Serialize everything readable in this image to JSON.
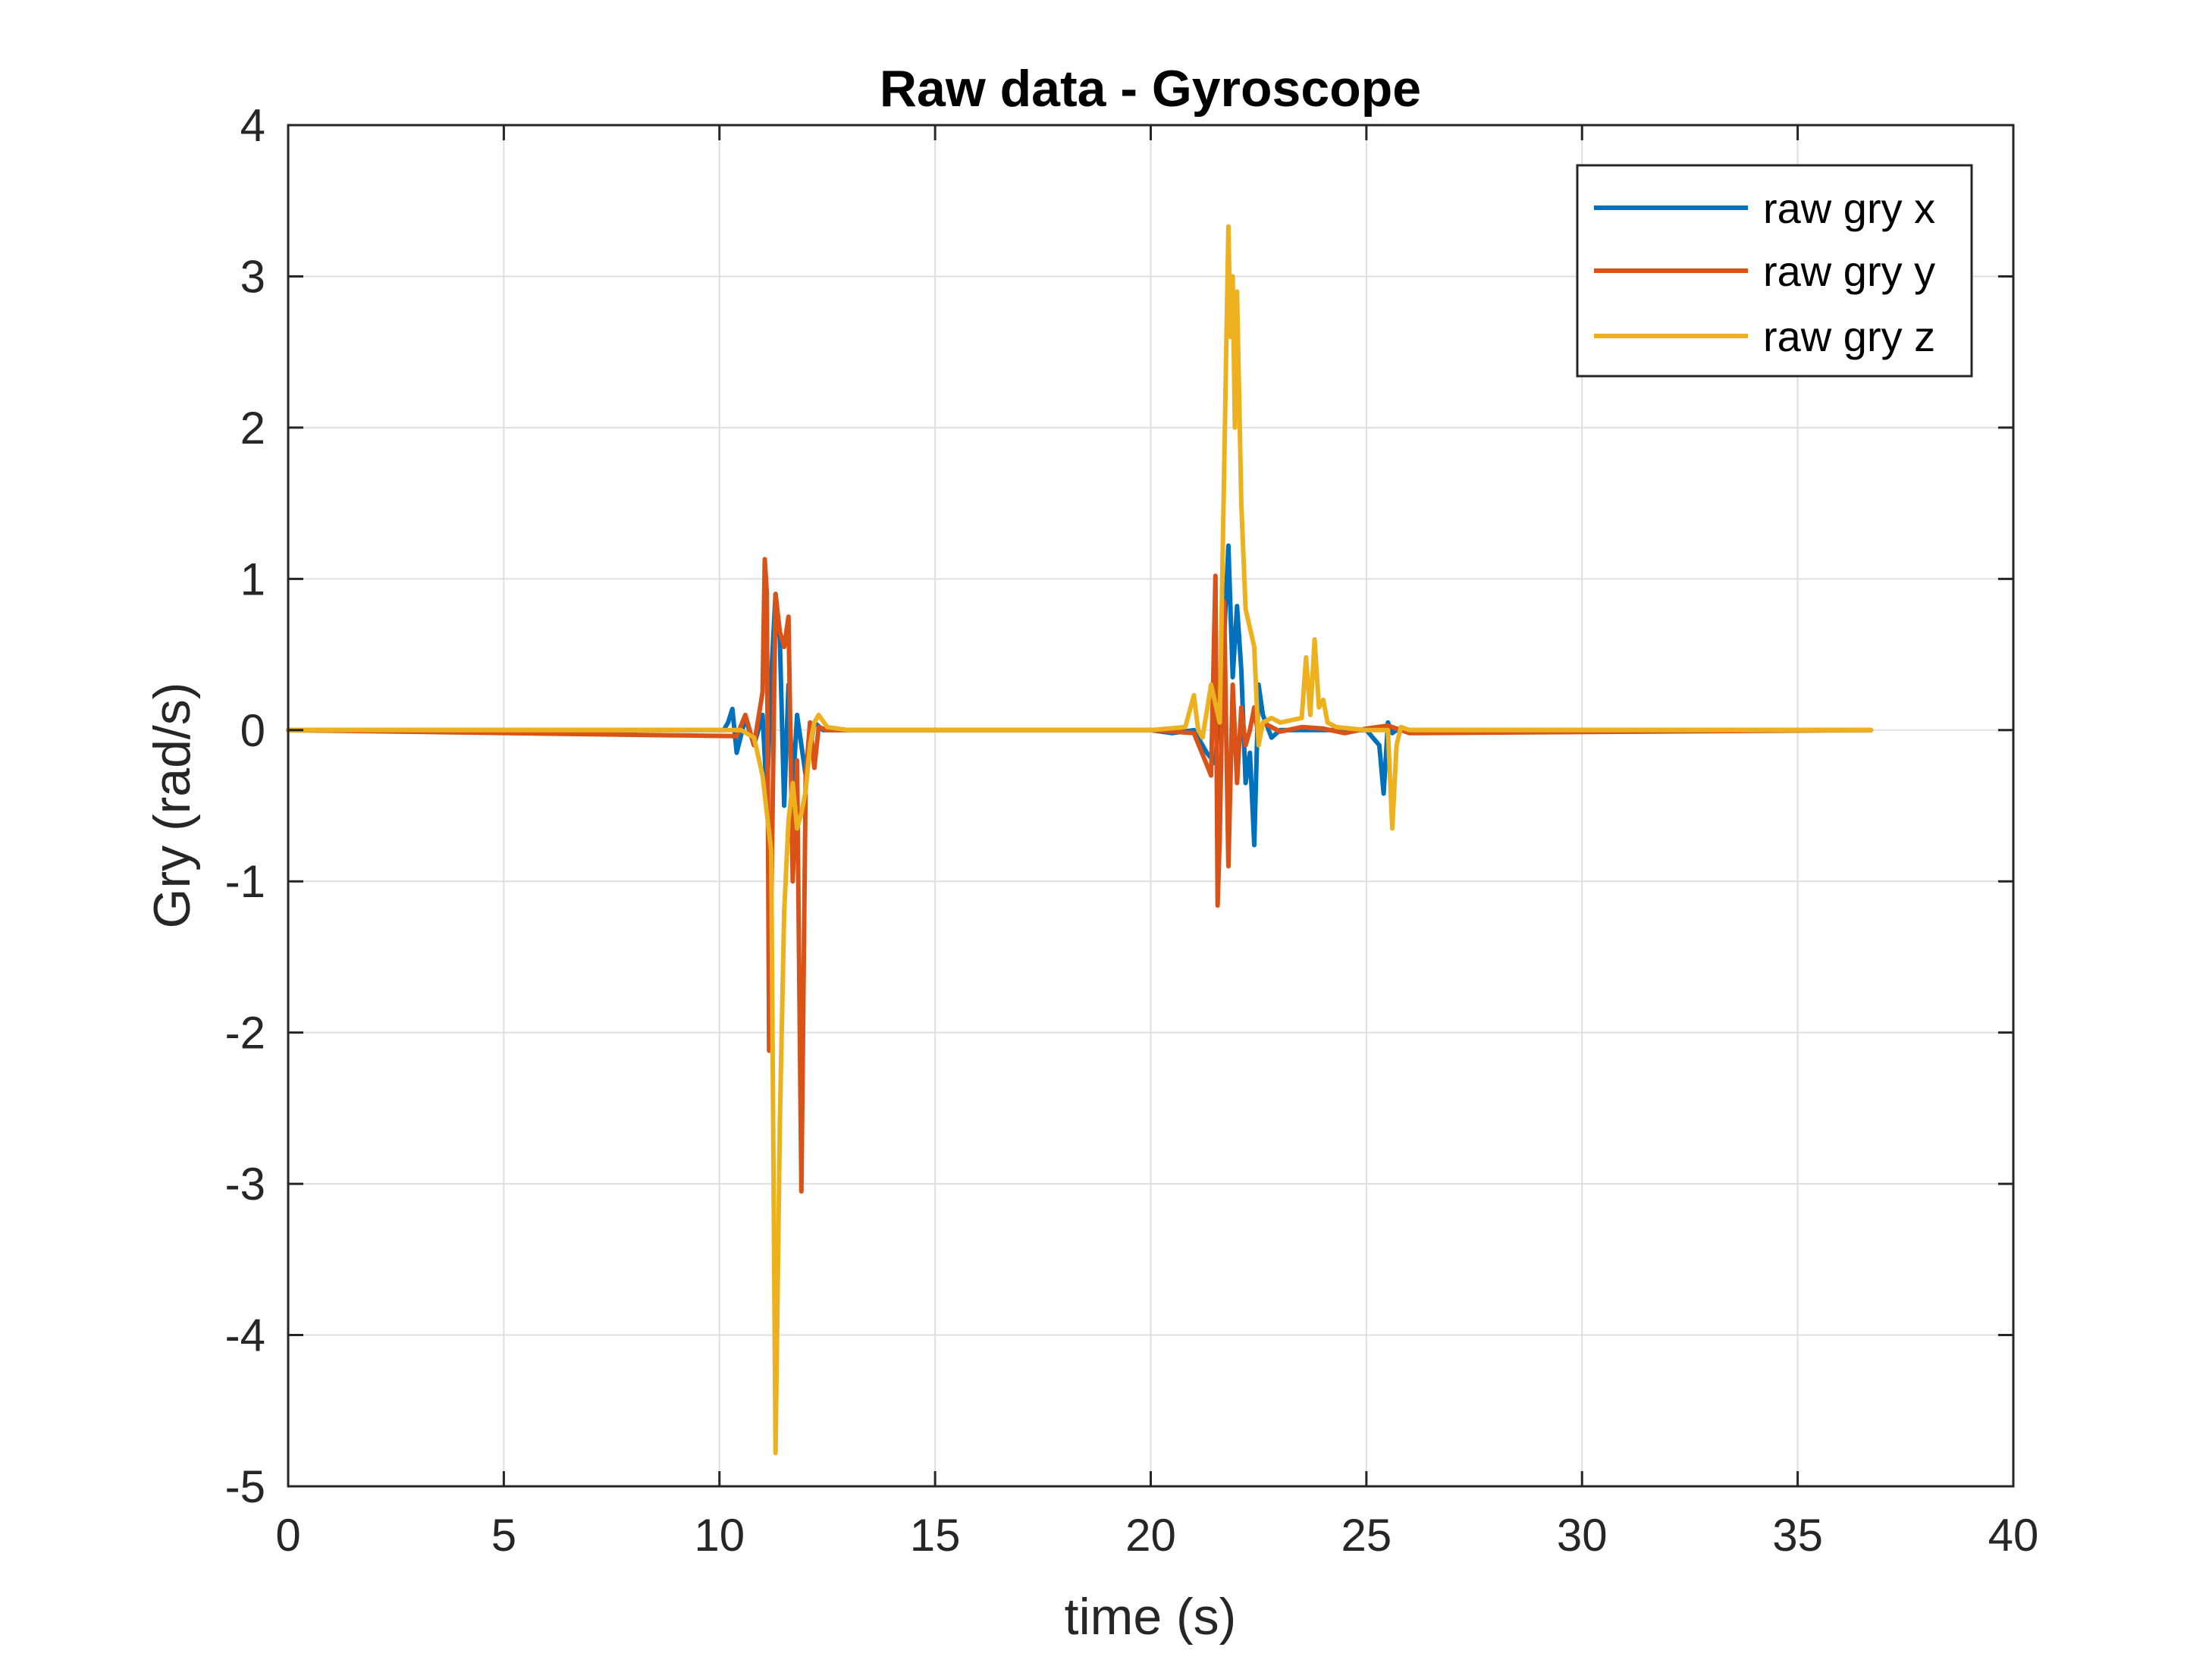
{
  "chart_data": {
    "type": "line",
    "title": "Raw data - Gyroscope",
    "xlabel": "time (s)",
    "ylabel": "Gry (rad/s)",
    "xlim": [
      0,
      40
    ],
    "ylim": [
      -5,
      4
    ],
    "xticks": [
      "0",
      "5",
      "10",
      "15",
      "20",
      "25",
      "30",
      "35",
      "40"
    ],
    "yticks": [
      "4",
      "3",
      "2",
      "1",
      "0",
      "-1",
      "-2",
      "-3",
      "-4",
      "-5"
    ],
    "grid": true,
    "legend_position": "top-right",
    "series": [
      {
        "name": "raw gry x",
        "color": "#0072BD",
        "x": [
          0,
          10.1,
          10.2,
          10.3,
          10.4,
          10.6,
          10.8,
          11.0,
          11.1,
          11.2,
          11.3,
          11.4,
          11.5,
          11.6,
          11.7,
          11.8,
          12.0,
          12.2,
          12.4,
          12.6,
          13.0,
          20.0,
          20.5,
          21.0,
          21.3,
          21.5,
          21.7,
          21.8,
          21.9,
          22.0,
          22.1,
          22.2,
          22.3,
          22.4,
          22.5,
          22.6,
          22.8,
          23.0,
          24.0,
          25.0,
          25.3,
          25.4,
          25.5,
          25.6,
          25.7,
          26.0,
          36.7
        ],
        "y": [
          0,
          0,
          0.05,
          0.14,
          -0.15,
          0.08,
          -0.1,
          0.1,
          -0.45,
          0.35,
          0.9,
          0.6,
          -0.5,
          0.3,
          -0.4,
          0.1,
          -0.3,
          0.05,
          0,
          0,
          0,
          0,
          -0.02,
          0.0,
          -0.15,
          -0.22,
          0.6,
          1.22,
          0.35,
          0.82,
          0.4,
          -0.35,
          -0.15,
          -0.76,
          0.3,
          0.1,
          -0.05,
          0,
          0,
          0,
          -0.1,
          -0.42,
          0.05,
          -0.02,
          0,
          0,
          0
        ]
      },
      {
        "name": "raw gry y",
        "color": "#D95319",
        "x": [
          0,
          10.4,
          10.6,
          10.8,
          11.0,
          11.05,
          11.1,
          11.15,
          11.2,
          11.3,
          11.4,
          11.5,
          11.6,
          11.7,
          11.8,
          11.9,
          12.0,
          12.1,
          12.2,
          12.3,
          12.5,
          20.0,
          21.0,
          21.4,
          21.5,
          21.55,
          21.6,
          21.7,
          21.8,
          21.9,
          22.0,
          22.1,
          22.2,
          22.3,
          22.4,
          22.5,
          22.6,
          22.8,
          23.0,
          23.5,
          24.0,
          24.5,
          25.0,
          25.5,
          26.0,
          36.7
        ],
        "y": [
          0,
          -0.04,
          0.1,
          -0.1,
          0.25,
          1.13,
          0.9,
          -2.12,
          -1.2,
          0.9,
          0.65,
          0.55,
          0.75,
          -1.0,
          -0.2,
          -3.05,
          -0.3,
          0.05,
          -0.25,
          0.02,
          0,
          0,
          -0.02,
          -0.3,
          1.02,
          -1.16,
          -0.7,
          0.85,
          -0.9,
          0.3,
          -0.35,
          0.15,
          -0.1,
          0.0,
          0.15,
          -0.05,
          0.05,
          0.02,
          -0.01,
          0.02,
          0.01,
          -0.02,
          0.01,
          0.03,
          -0.02,
          0
        ]
      },
      {
        "name": "raw gry z",
        "color": "#EDB120",
        "x": [
          0,
          10.0,
          10.5,
          10.8,
          11.0,
          11.1,
          11.2,
          11.3,
          11.4,
          11.5,
          11.6,
          11.7,
          11.8,
          11.9,
          12.0,
          12.1,
          12.2,
          12.3,
          12.5,
          13.0,
          20.0,
          20.8,
          21.0,
          21.1,
          21.2,
          21.4,
          21.6,
          21.8,
          21.85,
          21.9,
          21.95,
          22.0,
          22.05,
          22.1,
          22.2,
          22.4,
          22.5,
          22.6,
          22.8,
          23.0,
          23.5,
          23.6,
          23.7,
          23.8,
          23.9,
          24.0,
          24.1,
          24.3,
          25.0,
          25.5,
          25.6,
          25.7,
          25.8,
          26.0,
          26.5,
          36.7
        ],
        "y": [
          0,
          0,
          0,
          -0.05,
          -0.3,
          -0.55,
          -0.8,
          -4.78,
          -2.6,
          -1.2,
          -0.6,
          -0.35,
          -0.65,
          -0.55,
          -0.4,
          -0.1,
          0.05,
          0.1,
          0.02,
          0,
          0,
          0.02,
          0.23,
          0.0,
          -0.05,
          0.3,
          0.05,
          3.33,
          2.6,
          3.0,
          2.0,
          2.9,
          2.2,
          1.5,
          0.8,
          0.55,
          -0.1,
          0.05,
          0.08,
          0.05,
          0.08,
          0.48,
          0.1,
          0.6,
          0.15,
          0.2,
          0.05,
          0.02,
          0,
          0.0,
          -0.65,
          -0.1,
          0.02,
          0,
          0,
          0
        ]
      }
    ]
  }
}
